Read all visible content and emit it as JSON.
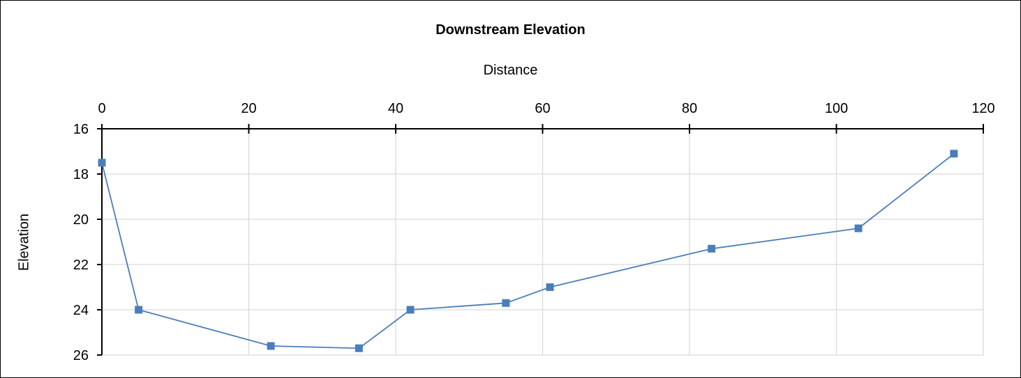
{
  "chart_data": {
    "type": "line",
    "title": "Downstream Elevation",
    "xlabel": "Distance",
    "ylabel": "Elevation",
    "xlim": [
      0,
      120
    ],
    "ylim": [
      16,
      26
    ],
    "y_reversed": true,
    "x_axis_position": "top",
    "x_ticks": [
      0,
      20,
      40,
      60,
      80,
      100,
      120
    ],
    "y_ticks": [
      16,
      18,
      20,
      22,
      24,
      26
    ],
    "grid": true,
    "legend": "none",
    "marker": "square",
    "series_color": "#4a7ebb",
    "grid_color": "#d9d9d9",
    "x": [
      0,
      5,
      23,
      35,
      42,
      55,
      61,
      83,
      103,
      116
    ],
    "y": [
      17.5,
      24.0,
      25.6,
      25.7,
      24.0,
      23.7,
      23.0,
      21.3,
      20.4,
      17.1
    ]
  }
}
